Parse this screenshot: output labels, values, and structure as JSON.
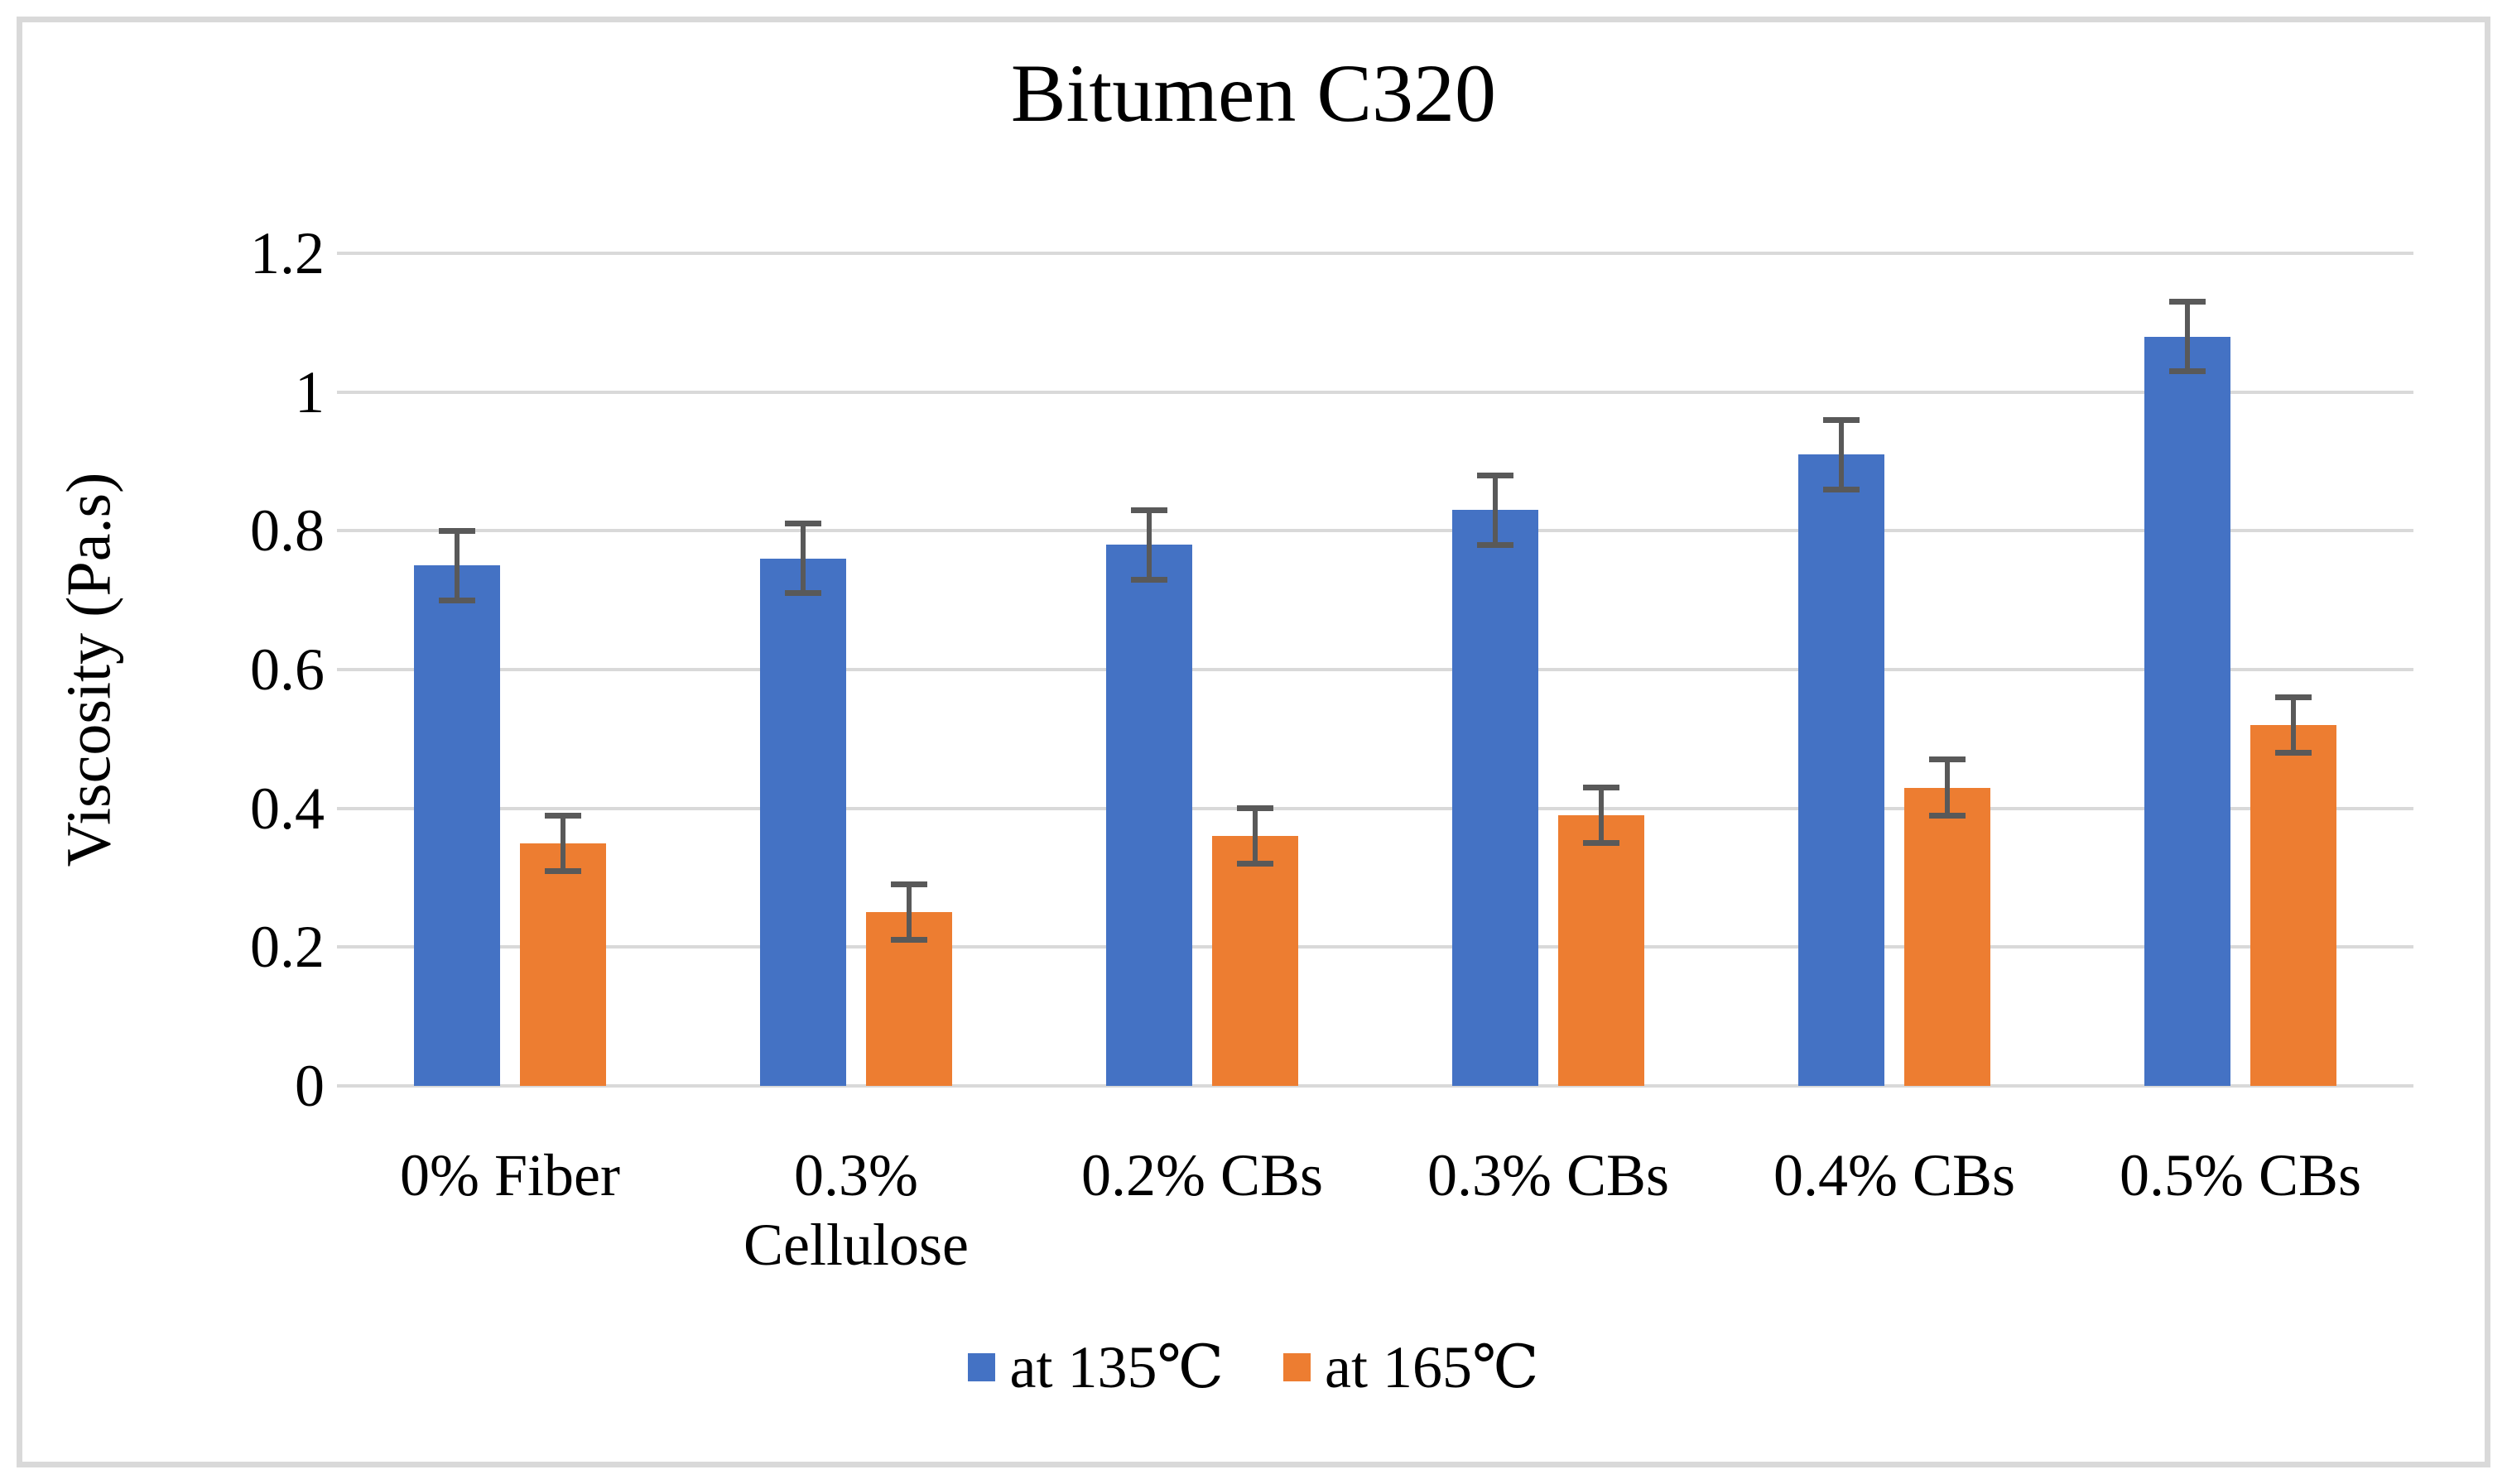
{
  "chart_data": {
    "type": "bar",
    "title": "Bitumen C320",
    "xlabel": "",
    "ylabel": "Viscosity (Pa.s)",
    "ylim": [
      0,
      1.2
    ],
    "ytick_step": 0.2,
    "yticks": [
      "0",
      "0.2",
      "0.4",
      "0.6",
      "0.8",
      "1",
      "1.2"
    ],
    "grid": "horizontal",
    "legend_position": "bottom",
    "categories": [
      "0% Fiber",
      "0.3% Cellulose",
      "0.2% CBs",
      "0.3% CBs",
      "0.4% CBs",
      "0.5% CBs"
    ],
    "series": [
      {
        "name": "at 135℃",
        "color": "#4472C4",
        "values": [
          0.75,
          0.76,
          0.78,
          0.83,
          0.91,
          1.08
        ],
        "errors": [
          0.05,
          0.05,
          0.05,
          0.05,
          0.05,
          0.05
        ]
      },
      {
        "name": "at 165℃",
        "color": "#ED7D31",
        "values": [
          0.35,
          0.25,
          0.36,
          0.39,
          0.43,
          0.52
        ],
        "errors": [
          0.04,
          0.04,
          0.04,
          0.04,
          0.04,
          0.04
        ]
      }
    ],
    "error_bar_color": "#595959",
    "gridline_color": "#D9D9D9",
    "frame_border_color": "#D9D9D9"
  }
}
